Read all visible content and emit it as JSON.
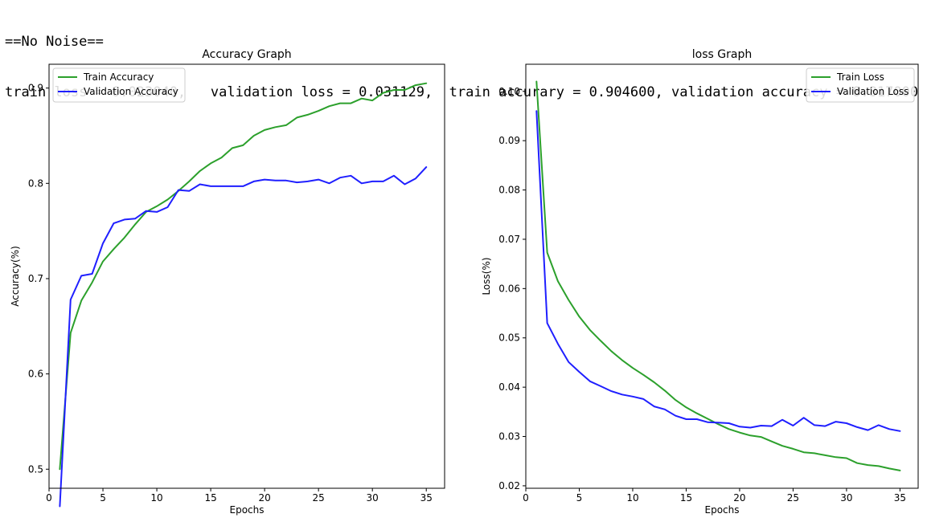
{
  "output": {
    "header_line": "==No Noise==",
    "metrics_line": "train loss = 0.023040,   validation loss = 0.031129,  train accurary = 0.904600, validation accuracy = 0.817000"
  },
  "colors": {
    "train": "#2ca02c",
    "validation": "#1f1fff"
  },
  "chart_data": [
    {
      "type": "line",
      "title": "Accuracy Graph",
      "xlabel": "Epochs",
      "ylabel": "Accuracy(%)",
      "xlim": [
        0,
        36.7
      ],
      "ylim": [
        0.48,
        0.925
      ],
      "xticks": [
        0,
        5,
        10,
        15,
        20,
        25,
        30,
        35
      ],
      "yticks": [
        0.5,
        0.6,
        0.7,
        0.8,
        0.9
      ],
      "ytick_labels": [
        "0.5",
        "0.6",
        "0.7",
        "0.8",
        "0.9"
      ],
      "legend_position": "upper-left",
      "grid": false,
      "x": [
        1,
        2,
        3,
        4,
        5,
        6,
        7,
        8,
        9,
        10,
        11,
        12,
        13,
        14,
        15,
        16,
        17,
        18,
        19,
        20,
        21,
        22,
        23,
        24,
        25,
        26,
        27,
        28,
        29,
        30,
        31,
        32,
        33,
        34,
        35
      ],
      "series": [
        {
          "name": "Train Accuracy",
          "color": "#2ca02c",
          "values": [
            0.5,
            0.643,
            0.677,
            0.696,
            0.718,
            0.731,
            0.743,
            0.757,
            0.77,
            0.776,
            0.783,
            0.792,
            0.802,
            0.813,
            0.821,
            0.827,
            0.837,
            0.84,
            0.85,
            0.856,
            0.859,
            0.861,
            0.869,
            0.872,
            0.876,
            0.881,
            0.884,
            0.884,
            0.889,
            0.887,
            0.895,
            0.898,
            0.898,
            0.903,
            0.905
          ]
        },
        {
          "name": "Validation Accuracy",
          "color": "#1f1fff",
          "values": [
            0.461,
            0.678,
            0.703,
            0.705,
            0.737,
            0.758,
            0.762,
            0.763,
            0.771,
            0.77,
            0.775,
            0.793,
            0.792,
            0.799,
            0.797,
            0.797,
            0.797,
            0.797,
            0.802,
            0.804,
            0.803,
            0.803,
            0.801,
            0.802,
            0.804,
            0.8,
            0.806,
            0.808,
            0.8,
            0.802,
            0.802,
            0.808,
            0.799,
            0.805,
            0.817
          ]
        }
      ]
    },
    {
      "type": "line",
      "title": "loss Graph",
      "xlabel": "Epochs",
      "ylabel": "Loss(%)",
      "xlim": [
        0,
        36.7
      ],
      "ylim": [
        0.0195,
        0.1055
      ],
      "xticks": [
        0,
        5,
        10,
        15,
        20,
        25,
        30,
        35
      ],
      "yticks": [
        0.02,
        0.03,
        0.04,
        0.05,
        0.06,
        0.07,
        0.08,
        0.09,
        0.1
      ],
      "ytick_labels": [
        "0.02",
        "0.03",
        "0.04",
        "0.05",
        "0.06",
        "0.07",
        "0.08",
        "0.09",
        "0.10"
      ],
      "legend_position": "upper-right",
      "grid": false,
      "x": [
        1,
        2,
        3,
        4,
        5,
        6,
        7,
        8,
        9,
        10,
        11,
        12,
        13,
        14,
        15,
        16,
        17,
        18,
        19,
        20,
        21,
        22,
        23,
        24,
        25,
        26,
        27,
        28,
        29,
        30,
        31,
        32,
        33,
        34,
        35
      ],
      "series": [
        {
          "name": "Train Loss",
          "color": "#2ca02c",
          "values": [
            0.102,
            0.0673,
            0.0615,
            0.0577,
            0.0543,
            0.0516,
            0.0494,
            0.0473,
            0.0455,
            0.0439,
            0.0425,
            0.041,
            0.0393,
            0.0374,
            0.0359,
            0.0347,
            0.0336,
            0.0325,
            0.0315,
            0.0308,
            0.0302,
            0.0299,
            0.029,
            0.0281,
            0.0275,
            0.0268,
            0.0266,
            0.0262,
            0.0258,
            0.0256,
            0.0246,
            0.0242,
            0.024,
            0.0235,
            0.0231
          ]
        },
        {
          "name": "Validation Loss",
          "color": "#1f1fff",
          "values": [
            0.096,
            0.053,
            0.0488,
            0.0451,
            0.0431,
            0.0412,
            0.0402,
            0.0392,
            0.0385,
            0.0381,
            0.0376,
            0.0361,
            0.0355,
            0.0342,
            0.0335,
            0.0335,
            0.0329,
            0.0328,
            0.0327,
            0.032,
            0.0318,
            0.0322,
            0.0321,
            0.0334,
            0.0322,
            0.0338,
            0.0323,
            0.0321,
            0.033,
            0.0327,
            0.0319,
            0.0313,
            0.0323,
            0.0315,
            0.0311
          ]
        }
      ]
    }
  ]
}
